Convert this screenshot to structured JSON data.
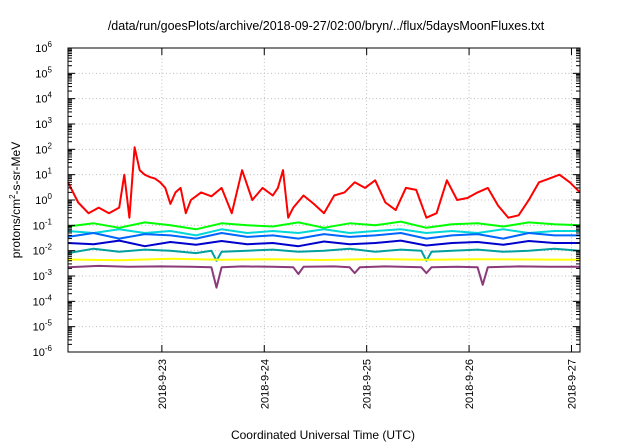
{
  "chart_data": {
    "type": "line",
    "title": "/data/run/goesPlots/archive/2018-09-27/02:00/bryn/../flux/5daysMoonFluxes.txt",
    "xlabel": "Coordinated Universal Time (UTC)",
    "ylabel_prefix": "protons/cm",
    "ylabel_sup": "2",
    "ylabel_suffix": "-s-sr-MeV",
    "yscale": "log",
    "ylim_exp": [
      -6,
      6
    ],
    "ytick_exps": [
      -6,
      -5,
      -4,
      -3,
      -2,
      -1,
      0,
      1,
      2,
      3,
      4,
      5,
      6
    ],
    "ytick_base": "10",
    "xlim": [
      "2018-09-22T02:00",
      "2018-09-27T02:00"
    ],
    "xticks": [
      {
        "label": "2018-9-23",
        "at": "2018-09-23T00:00"
      },
      {
        "label": "2018-9-24",
        "at": "2018-09-24T00:00"
      },
      {
        "label": "2018-9-25",
        "at": "2018-09-25T00:00"
      },
      {
        "label": "2018-9-26",
        "at": "2018-09-26T00:00"
      },
      {
        "label": "2018-9-27",
        "at": "2018-09-27T00:00"
      }
    ],
    "grid": true,
    "series": [
      {
        "color": "#ff0000",
        "x_days": [
          0.0,
          0.1,
          0.2,
          0.3,
          0.4,
          0.5,
          0.55,
          0.6,
          0.65,
          0.7,
          0.75,
          0.8,
          0.85,
          0.9,
          0.95,
          1.0,
          1.05,
          1.1,
          1.15,
          1.2,
          1.3,
          1.4,
          1.5,
          1.6,
          1.7,
          1.8,
          1.9,
          2.0,
          2.05,
          2.1,
          2.15,
          2.2,
          2.3,
          2.4,
          2.5,
          2.6,
          2.7,
          2.8,
          2.9,
          3.0,
          3.1,
          3.2,
          3.3,
          3.4,
          3.5,
          3.6,
          3.7,
          3.8,
          3.9,
          4.0,
          4.1,
          4.2,
          4.3,
          4.4,
          4.5,
          4.6,
          4.7,
          4.8,
          4.9,
          5.0
        ],
        "values": [
          5,
          0.8,
          0.3,
          0.5,
          0.3,
          0.5,
          10,
          0.2,
          120,
          15,
          10,
          8,
          7,
          5,
          3,
          0.7,
          2,
          3,
          0.3,
          1,
          2,
          1.4,
          3,
          0.3,
          15,
          1,
          3,
          1.5,
          3,
          15,
          0.2,
          0.5,
          1.5,
          0.7,
          0.3,
          1.5,
          2,
          5,
          3,
          6,
          0.8,
          0.4,
          3,
          2.5,
          0.2,
          0.3,
          6,
          1,
          1.2,
          2,
          3,
          0.6,
          0.2,
          0.25,
          1,
          5,
          7,
          10,
          5,
          2
        ]
      },
      {
        "color": "#00ff00",
        "x_days": [
          0.0,
          0.25,
          0.5,
          0.75,
          1.0,
          1.25,
          1.5,
          1.75,
          2.0,
          2.25,
          2.5,
          2.75,
          3.0,
          3.25,
          3.5,
          3.75,
          4.0,
          4.25,
          4.5,
          4.75,
          5.0
        ],
        "values": [
          0.09,
          0.12,
          0.08,
          0.13,
          0.1,
          0.07,
          0.12,
          0.1,
          0.09,
          0.13,
          0.08,
          0.12,
          0.1,
          0.14,
          0.08,
          0.11,
          0.12,
          0.09,
          0.13,
          0.11,
          0.1
        ]
      },
      {
        "color": "#00d8d8",
        "x_days": [
          0.0,
          0.25,
          0.5,
          0.75,
          1.0,
          1.25,
          1.5,
          1.75,
          2.0,
          2.25,
          2.5,
          2.75,
          3.0,
          3.25,
          3.5,
          3.75,
          4.0,
          4.25,
          4.5,
          4.75,
          5.0
        ],
        "values": [
          0.06,
          0.05,
          0.07,
          0.05,
          0.06,
          0.04,
          0.07,
          0.05,
          0.06,
          0.05,
          0.07,
          0.05,
          0.06,
          0.07,
          0.05,
          0.06,
          0.05,
          0.07,
          0.05,
          0.06,
          0.06
        ]
      },
      {
        "color": "#0066ff",
        "x_days": [
          0.0,
          0.25,
          0.5,
          0.75,
          1.0,
          1.25,
          1.5,
          1.75,
          2.0,
          2.25,
          2.5,
          2.75,
          3.0,
          3.25,
          3.5,
          3.75,
          4.0,
          4.25,
          4.5,
          4.75,
          5.0
        ],
        "values": [
          0.035,
          0.05,
          0.03,
          0.045,
          0.04,
          0.03,
          0.05,
          0.035,
          0.04,
          0.03,
          0.045,
          0.035,
          0.04,
          0.05,
          0.03,
          0.04,
          0.045,
          0.03,
          0.05,
          0.04,
          0.04
        ]
      },
      {
        "color": "#0000cc",
        "x_days": [
          0.0,
          0.25,
          0.5,
          0.75,
          1.0,
          1.25,
          1.5,
          1.75,
          2.0,
          2.25,
          2.5,
          2.75,
          3.0,
          3.25,
          3.5,
          3.75,
          4.0,
          4.25,
          4.5,
          4.75,
          5.0
        ],
        "values": [
          0.02,
          0.018,
          0.025,
          0.015,
          0.022,
          0.017,
          0.024,
          0.018,
          0.02,
          0.015,
          0.023,
          0.018,
          0.02,
          0.025,
          0.016,
          0.02,
          0.022,
          0.017,
          0.024,
          0.02,
          0.02
        ]
      },
      {
        "color": "#00a0a0",
        "x_days": [
          0.0,
          0.25,
          0.5,
          0.75,
          1.0,
          1.25,
          1.4,
          1.45,
          1.5,
          1.75,
          2.0,
          2.25,
          2.5,
          2.75,
          3.0,
          3.25,
          3.45,
          3.5,
          3.55,
          3.75,
          4.0,
          4.25,
          4.5,
          4.75,
          5.0
        ],
        "values": [
          0.008,
          0.012,
          0.009,
          0.011,
          0.01,
          0.008,
          0.01,
          0.004,
          0.009,
          0.01,
          0.011,
          0.009,
          0.01,
          0.012,
          0.009,
          0.011,
          0.01,
          0.004,
          0.009,
          0.01,
          0.011,
          0.009,
          0.01,
          0.012,
          0.01
        ]
      },
      {
        "color": "#ffff00",
        "x_days": [
          0.0,
          0.5,
          1.0,
          1.5,
          2.0,
          2.5,
          3.0,
          3.5,
          4.0,
          4.5,
          5.0
        ],
        "values": [
          0.0045,
          0.0042,
          0.0048,
          0.0044,
          0.0046,
          0.0043,
          0.0047,
          0.0044,
          0.0046,
          0.0045,
          0.0044
        ]
      },
      {
        "color": "#8b3a7a",
        "x_days": [
          0.0,
          0.3,
          0.6,
          0.9,
          1.2,
          1.4,
          1.45,
          1.5,
          1.7,
          2.0,
          2.2,
          2.25,
          2.3,
          2.6,
          2.75,
          2.8,
          2.85,
          3.1,
          3.45,
          3.5,
          3.55,
          3.8,
          4.0,
          4.05,
          4.1,
          4.4,
          4.7,
          5.0
        ],
        "values": [
          0.0022,
          0.0025,
          0.0023,
          0.0024,
          0.0023,
          0.0022,
          0.00035,
          0.0022,
          0.0024,
          0.0023,
          0.0022,
          0.0012,
          0.0023,
          0.0024,
          0.0022,
          0.0013,
          0.0022,
          0.0024,
          0.0022,
          0.0013,
          0.0022,
          0.0023,
          0.0022,
          0.00045,
          0.0022,
          0.0024,
          0.0023,
          0.0023
        ]
      }
    ]
  }
}
